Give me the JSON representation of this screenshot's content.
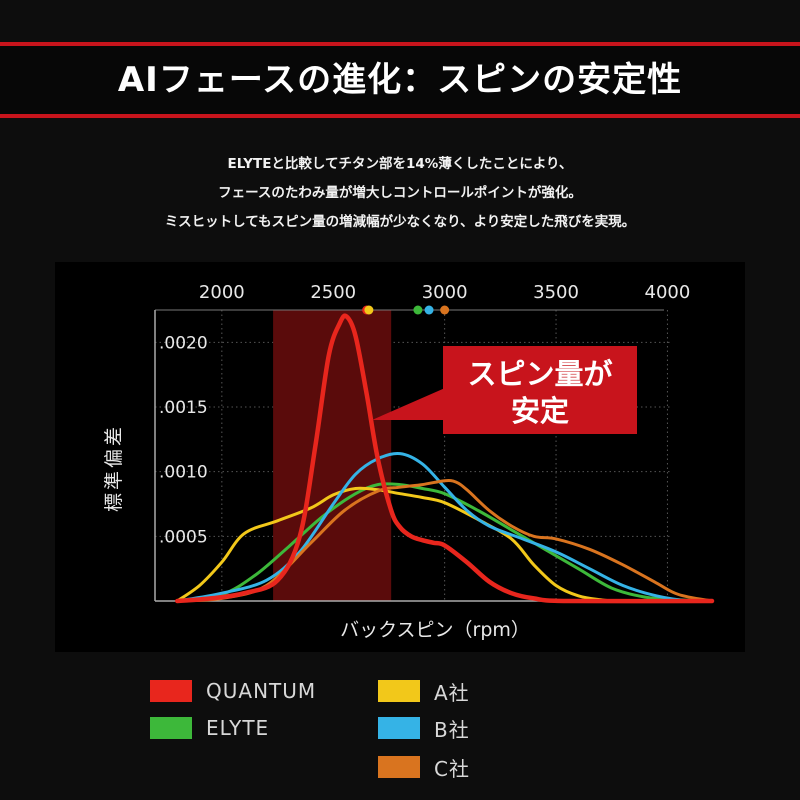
{
  "header": {
    "title": "AIフェースの進化：スピンの安定性",
    "description": [
      "ELYTEと比較してチタン部を14%薄くしたことにより、",
      "フェースのたわみ量が増大しコントロールポイントが強化。",
      "ミスヒットしてもスピン量の増減幅が少なくなり、より安定した飛びを実現。"
    ]
  },
  "callout": {
    "line1": "スピン量が",
    "line2": "安定"
  },
  "colors": {
    "accent_red": "#c8141c",
    "QUANTUM": "#e8261d",
    "ELYTE": "#3db83a",
    "A社": "#f2c81a",
    "B社": "#35b3e6",
    "C社": "#d9741f"
  },
  "chart_data": {
    "type": "line",
    "xlabel": "バックスピン（rpm）",
    "ylabel": "標準偏差",
    "x_ticks": [
      2000,
      2500,
      3000,
      3500,
      4000
    ],
    "x_tick_labels": [
      "2000",
      "2500",
      "3000",
      "3500",
      "4000"
    ],
    "y_ticks": [
      0.0005,
      0.001,
      0.0015,
      0.002
    ],
    "y_tick_labels": [
      ".0005",
      ".0010",
      ".0015",
      ".0020"
    ],
    "xlim": [
      1700,
      4200
    ],
    "ylim": [
      0,
      0.00225
    ],
    "x_axis_position": "top",
    "grid": true,
    "highlight_band_x": [
      2230,
      2760
    ],
    "series": [
      {
        "name": "QUANTUM",
        "x": [
          1800,
          1950,
          2100,
          2250,
          2350,
          2420,
          2480,
          2530,
          2560,
          2600,
          2650,
          2700,
          2760,
          2800,
          2850,
          2900,
          2950,
          3000,
          3100,
          3200,
          3300,
          3400,
          3550,
          4200
        ],
        "y": [
          0.0,
          2e-05,
          6e-05,
          0.00016,
          0.0005,
          0.0012,
          0.0019,
          0.00215,
          0.0022,
          0.00205,
          0.0016,
          0.0011,
          0.0007,
          0.00057,
          0.0005,
          0.00047,
          0.00045,
          0.00043,
          0.0003,
          0.00015,
          6e-05,
          2e-05,
          0.0,
          0.0
        ],
        "mean": 2650
      },
      {
        "name": "ELYTE",
        "x": [
          1800,
          2000,
          2150,
          2300,
          2450,
          2600,
          2700,
          2800,
          2900,
          3000,
          3150,
          3300,
          3450,
          3600,
          3750,
          3900,
          4050,
          4200
        ],
        "y": [
          0.0,
          5e-05,
          0.0002,
          0.00042,
          0.00065,
          0.00083,
          0.0009,
          0.0009,
          0.00087,
          0.00083,
          0.0007,
          0.00055,
          0.0004,
          0.00025,
          0.0001,
          3e-05,
          1e-05,
          0.0
        ],
        "mean": 2880
      },
      {
        "name": "A社",
        "x": [
          1800,
          1900,
          2000,
          2100,
          2250,
          2400,
          2500,
          2600,
          2700,
          2800,
          2900,
          3000,
          3150,
          3300,
          3400,
          3500,
          3600,
          3700,
          3800,
          4200
        ],
        "y": [
          0.0,
          0.00012,
          0.0003,
          0.00052,
          0.00062,
          0.00072,
          0.00082,
          0.00087,
          0.00086,
          0.00083,
          0.0008,
          0.00076,
          0.00063,
          0.00048,
          0.00028,
          0.00012,
          4e-05,
          1e-05,
          0.0,
          0.0
        ],
        "mean": 2660
      },
      {
        "name": "B社",
        "x": [
          1800,
          2000,
          2200,
          2350,
          2500,
          2600,
          2700,
          2800,
          2900,
          3000,
          3100,
          3200,
          3350,
          3500,
          3650,
          3800,
          3950,
          4100,
          4200
        ],
        "y": [
          0.0,
          6e-05,
          0.00016,
          0.00038,
          0.00075,
          0.00098,
          0.0011,
          0.00114,
          0.00106,
          0.00088,
          0.0007,
          0.00058,
          0.00048,
          0.00038,
          0.00025,
          0.00012,
          4e-05,
          0.0,
          0.0
        ],
        "mean": 2930
      },
      {
        "name": "C社",
        "x": [
          1800,
          2000,
          2200,
          2400,
          2550,
          2700,
          2800,
          2900,
          3000,
          3050,
          3100,
          3200,
          3300,
          3400,
          3500,
          3650,
          3800,
          3950,
          4050,
          4200
        ],
        "y": [
          0.0,
          2e-05,
          0.00012,
          0.00045,
          0.0007,
          0.00085,
          0.00088,
          0.0009,
          0.00093,
          0.00092,
          0.00086,
          0.0007,
          0.00058,
          0.0005,
          0.00048,
          0.0004,
          0.00028,
          0.00014,
          5e-05,
          0.0
        ],
        "mean": 3000
      }
    ]
  },
  "legend": [
    {
      "label": "QUANTUM",
      "color": "#e8261d"
    },
    {
      "label": "ELYTE",
      "color": "#3db83a"
    },
    {
      "label": "A社",
      "color": "#f2c81a"
    },
    {
      "label": "B社",
      "color": "#35b3e6"
    },
    {
      "label": "C社",
      "color": "#d9741f"
    }
  ]
}
